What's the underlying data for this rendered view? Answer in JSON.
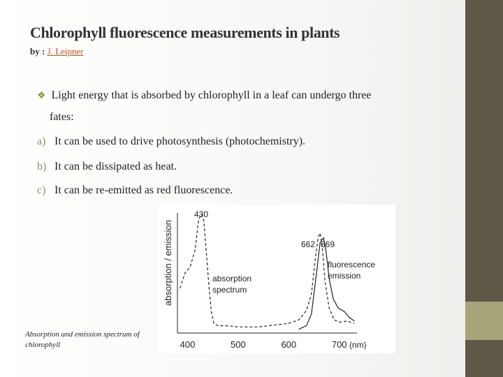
{
  "slide": {
    "title": "Chlorophyll fluorescence measurements in plants",
    "byline_prefix": "by : ",
    "author": "J. Leipner",
    "bullet_line1": "Light energy that is absorbed by chlorophyll in a leaf can undergo three",
    "bullet_line2": "fates:",
    "sub_items": [
      {
        "letter": "a)",
        "text": "It can be used to drive photosynthesis (photochemistry)."
      },
      {
        "letter": "b)",
        "text": "It can be dissipated as heat."
      },
      {
        "letter": "c)",
        "text": "It can be re-emitted as red fluorescence."
      }
    ],
    "caption": "Absorption and emission spectrum of chlorophyll",
    "colors": {
      "bullet_mark": "#8a8d3a",
      "author": "#c0501d",
      "band_dark": "#5f5847",
      "band_light": "#a6a57a"
    }
  },
  "chart_data": {
    "type": "line",
    "ylabel": "absorption / emission",
    "xlabel": "(nm)",
    "x_ticks": [
      "400",
      "500",
      "600",
      "700"
    ],
    "xlim": [
      380,
      735
    ],
    "peak_labels": [
      "430",
      "662",
      "669"
    ],
    "series": [
      {
        "name": "absorption spectrum",
        "style": "dashed",
        "points": [
          [
            385,
            0.37
          ],
          [
            395,
            0.5
          ],
          [
            405,
            0.55
          ],
          [
            415,
            0.7
          ],
          [
            422,
            0.96
          ],
          [
            428,
            1.0
          ],
          [
            432,
            0.95
          ],
          [
            437,
            0.68
          ],
          [
            442,
            0.4
          ],
          [
            447,
            0.17
          ],
          [
            452,
            0.07
          ],
          [
            460,
            0.05
          ],
          [
            480,
            0.05
          ],
          [
            500,
            0.04
          ],
          [
            520,
            0.04
          ],
          [
            540,
            0.04
          ],
          [
            560,
            0.05
          ],
          [
            580,
            0.06
          ],
          [
            600,
            0.07
          ],
          [
            620,
            0.1
          ],
          [
            635,
            0.18
          ],
          [
            645,
            0.32
          ],
          [
            652,
            0.6
          ],
          [
            658,
            0.8
          ],
          [
            662,
            0.84
          ],
          [
            666,
            0.74
          ],
          [
            672,
            0.42
          ],
          [
            680,
            0.2
          ],
          [
            690,
            0.1
          ],
          [
            700,
            0.08
          ],
          [
            715,
            0.09
          ],
          [
            730,
            0.07
          ]
        ]
      },
      {
        "name": "fluorescence emission",
        "style": "solid",
        "points": [
          [
            620,
            0.02
          ],
          [
            635,
            0.05
          ],
          [
            645,
            0.15
          ],
          [
            655,
            0.5
          ],
          [
            662,
            0.76
          ],
          [
            669,
            0.8
          ],
          [
            674,
            0.68
          ],
          [
            680,
            0.45
          ],
          [
            688,
            0.28
          ],
          [
            698,
            0.2
          ],
          [
            710,
            0.17
          ],
          [
            720,
            0.12
          ],
          [
            730,
            0.09
          ]
        ]
      }
    ]
  }
}
